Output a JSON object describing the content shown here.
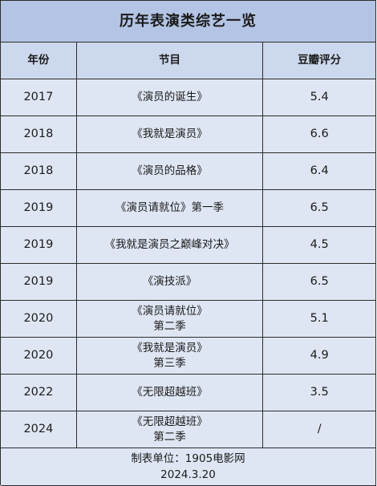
{
  "title": "历年表演类综艺一览",
  "headers": {
    "year": "年份",
    "program": "节目",
    "rating": "豆瓣评分"
  },
  "rows": [
    {
      "year": "2017",
      "program_line1": "《演员的诞生》",
      "program_line2": "",
      "rating": "5.4"
    },
    {
      "year": "2018",
      "program_line1": "《我就是演员》",
      "program_line2": "",
      "rating": "6.6"
    },
    {
      "year": "2018",
      "program_line1": "《演员的品格》",
      "program_line2": "",
      "rating": "6.4"
    },
    {
      "year": "2019",
      "program_line1": "《演员请就位》第一季",
      "program_line2": "",
      "rating": "6.5"
    },
    {
      "year": "2019",
      "program_line1": "《我就是演员之巅峰对决》",
      "program_line2": "",
      "rating": "4.5"
    },
    {
      "year": "2019",
      "program_line1": "《演技派》",
      "program_line2": "",
      "rating": "6.5"
    },
    {
      "year": "2020",
      "program_line1": "《演员请就位》",
      "program_line2": "第二季",
      "rating": "5.1"
    },
    {
      "year": "2020",
      "program_line1": "《我就是演员》",
      "program_line2": "第三季",
      "rating": "4.9"
    },
    {
      "year": "2022",
      "program_line1": "《无限超越班》",
      "program_line2": "",
      "rating": "3.5"
    },
    {
      "year": "2024",
      "program_line1": "《无限超越班》",
      "program_line2": "第二季",
      "rating": "/"
    }
  ],
  "footer": {
    "source": "制表单位：1905电影网",
    "date": "2024.3.20"
  }
}
